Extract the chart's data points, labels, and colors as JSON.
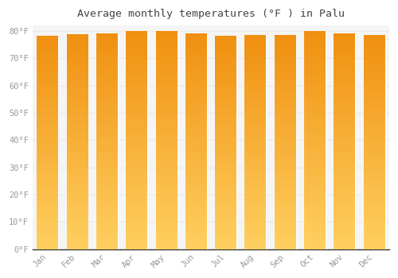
{
  "title": "Average monthly temperatures (°F ) in Palu",
  "months": [
    "Jan",
    "Feb",
    "Mar",
    "Apr",
    "May",
    "Jun",
    "Jul",
    "Aug",
    "Sep",
    "Oct",
    "Nov",
    "Dec"
  ],
  "values": [
    78.1,
    78.8,
    79.0,
    80.0,
    80.0,
    79.0,
    78.1,
    78.4,
    78.4,
    80.0,
    79.0,
    78.5
  ],
  "bar_color": "#FFA500",
  "bar_top_color": "#F5A623",
  "bar_bottom_color": "#FFD060",
  "background_color": "#FFFFFF",
  "plot_bg_color": "#F5F5F5",
  "grid_color": "#E8E8E8",
  "tick_label_color": "#999999",
  "title_color": "#444444",
  "ylim": [
    0,
    82
  ],
  "ytick_step": 10,
  "bar_width": 0.72
}
